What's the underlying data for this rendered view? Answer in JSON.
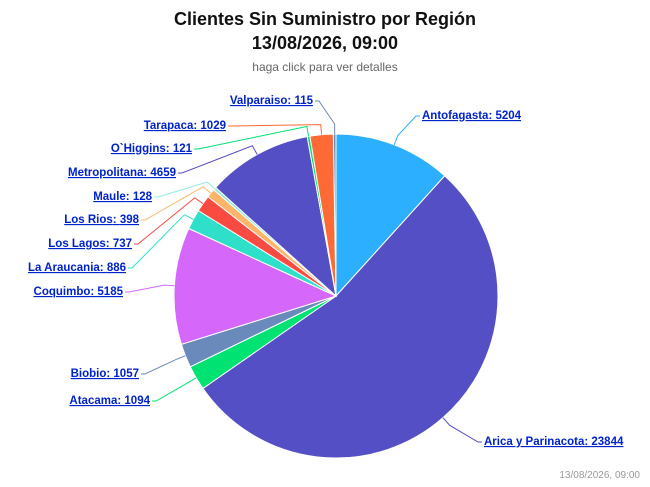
{
  "chart_data": {
    "type": "pie",
    "title": [
      "Clientes Sin Suministro por Región",
      "13/08/2026, 09:00"
    ],
    "subtitle": "haga click para ver detalles",
    "credits": "13/08/2026, 09:00",
    "categories": [
      "Antofagasta",
      "Arica y Parinacota",
      "Atacama",
      "Biobio",
      "Coquimbo",
      "La Araucania",
      "Los Lagos",
      "Los Rios",
      "Maule",
      "Metropolitana",
      "O`Higgins",
      "Tarapaca",
      "Valparaiso"
    ],
    "values": [
      5204,
      23844,
      1094,
      1057,
      5185,
      886,
      737,
      398,
      128,
      4659,
      121,
      1029,
      115
    ],
    "colors": [
      "#2caffe",
      "#544fc5",
      "#00e272",
      "#6b8abc",
      "#d568fb",
      "#2ee0ca",
      "#fa4b42",
      "#feb56a",
      "#91e8e1",
      "#544fc5",
      "#00e272",
      "#fe6a35",
      "#6b8abc"
    ]
  }
}
